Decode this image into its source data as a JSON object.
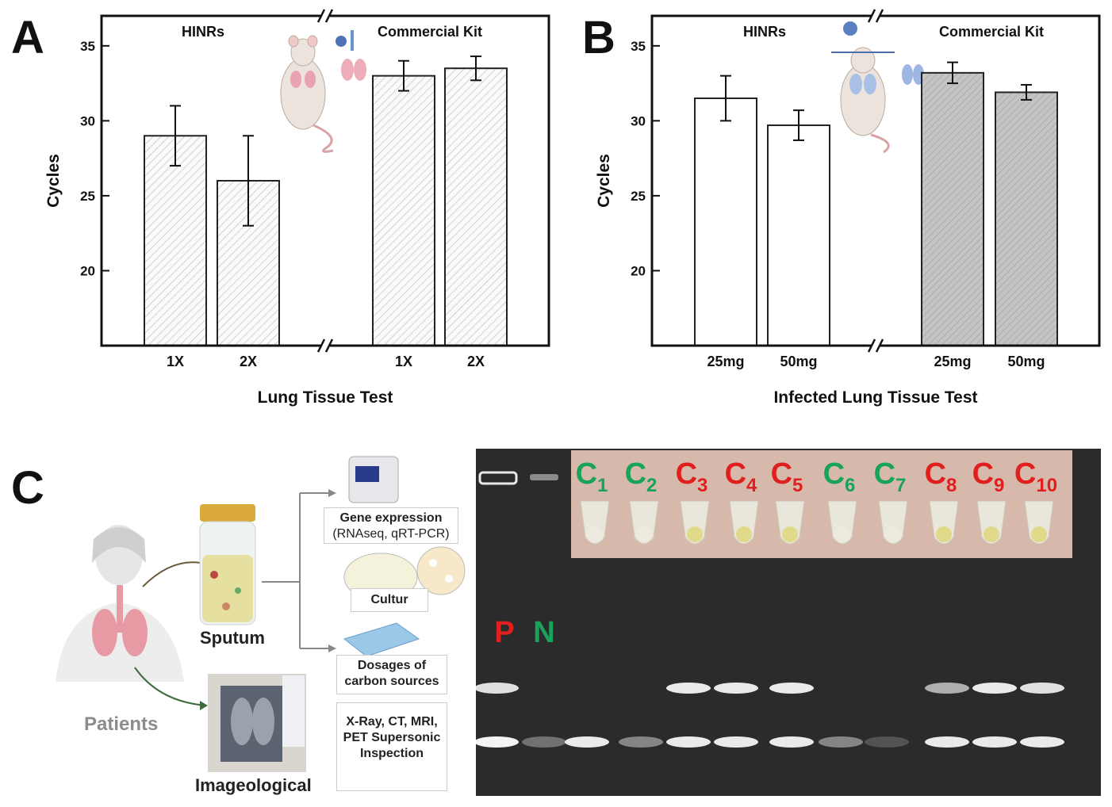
{
  "panels": {
    "a": "A",
    "b": "B",
    "c": "C"
  },
  "chart_data": [
    {
      "type": "bar",
      "ylabel": "Cycles",
      "xlabel": "Lung Tissue Test",
      "ylim": [
        15,
        37
      ],
      "yticks": [
        20,
        25,
        30,
        35
      ],
      "groups": [
        "HINRs",
        "Commercial Kit"
      ],
      "categories": [
        "1X",
        "2X",
        "1X",
        "2X"
      ],
      "group_of": [
        0,
        0,
        1,
        1
      ],
      "values": [
        29,
        26,
        33,
        33.5
      ],
      "errors": [
        2,
        3,
        1,
        0.8
      ],
      "fills": [
        "hatch-light",
        "hatch-light",
        "hatch-light",
        "hatch-light"
      ],
      "axis_break": true
    },
    {
      "type": "bar",
      "ylabel": "Cycles",
      "xlabel": "Infected Lung Tissue Test",
      "ylim": [
        15,
        37
      ],
      "yticks": [
        20,
        25,
        30,
        35
      ],
      "groups": [
        "HINRs",
        "Commercial Kit"
      ],
      "categories": [
        "25mg",
        "50mg",
        "25mg",
        "50mg"
      ],
      "group_of": [
        0,
        0,
        1,
        1
      ],
      "values": [
        31.5,
        29.7,
        33.2,
        31.9
      ],
      "errors": [
        1.5,
        1,
        0.7,
        0.5
      ],
      "fills": [
        "white",
        "white",
        "grey",
        "grey"
      ],
      "axis_break": true
    }
  ],
  "diagram": {
    "patients": "Patients",
    "sputum": "Sputum",
    "imageological": "Imageological",
    "gene_expression": "Gene expression",
    "gene_expression_sub": "(RNAseq, qRT-PCR)",
    "cultur": "Cultur",
    "dosages": "Dosages of carbon sources",
    "imaging_methods": "X-Ray, CT, MRI, PET Supersonic Inspection"
  },
  "gel": {
    "controls": [
      {
        "label": "P",
        "color": "#e01f1f"
      },
      {
        "label": "N",
        "color": "#19a35a"
      }
    ],
    "samples": [
      {
        "letter": "C",
        "num": "1",
        "color": "#19a35a",
        "positive": false
      },
      {
        "letter": "C",
        "num": "2",
        "color": "#19a35a",
        "positive": false
      },
      {
        "letter": "C",
        "num": "3",
        "color": "#e01f1f",
        "positive": true
      },
      {
        "letter": "C",
        "num": "4",
        "color": "#e01f1f",
        "positive": true
      },
      {
        "letter": "C",
        "num": "5",
        "color": "#e01f1f",
        "positive": true
      },
      {
        "letter": "C",
        "num": "6",
        "color": "#19a35a",
        "positive": false
      },
      {
        "letter": "C",
        "num": "7",
        "color": "#19a35a",
        "positive": false
      },
      {
        "letter": "C",
        "num": "8",
        "color": "#e01f1f",
        "positive": true
      },
      {
        "letter": "C",
        "num": "9",
        "color": "#e01f1f",
        "positive": true
      },
      {
        "letter": "C",
        "num": "10",
        "color": "#e01f1f",
        "positive": true
      }
    ]
  }
}
